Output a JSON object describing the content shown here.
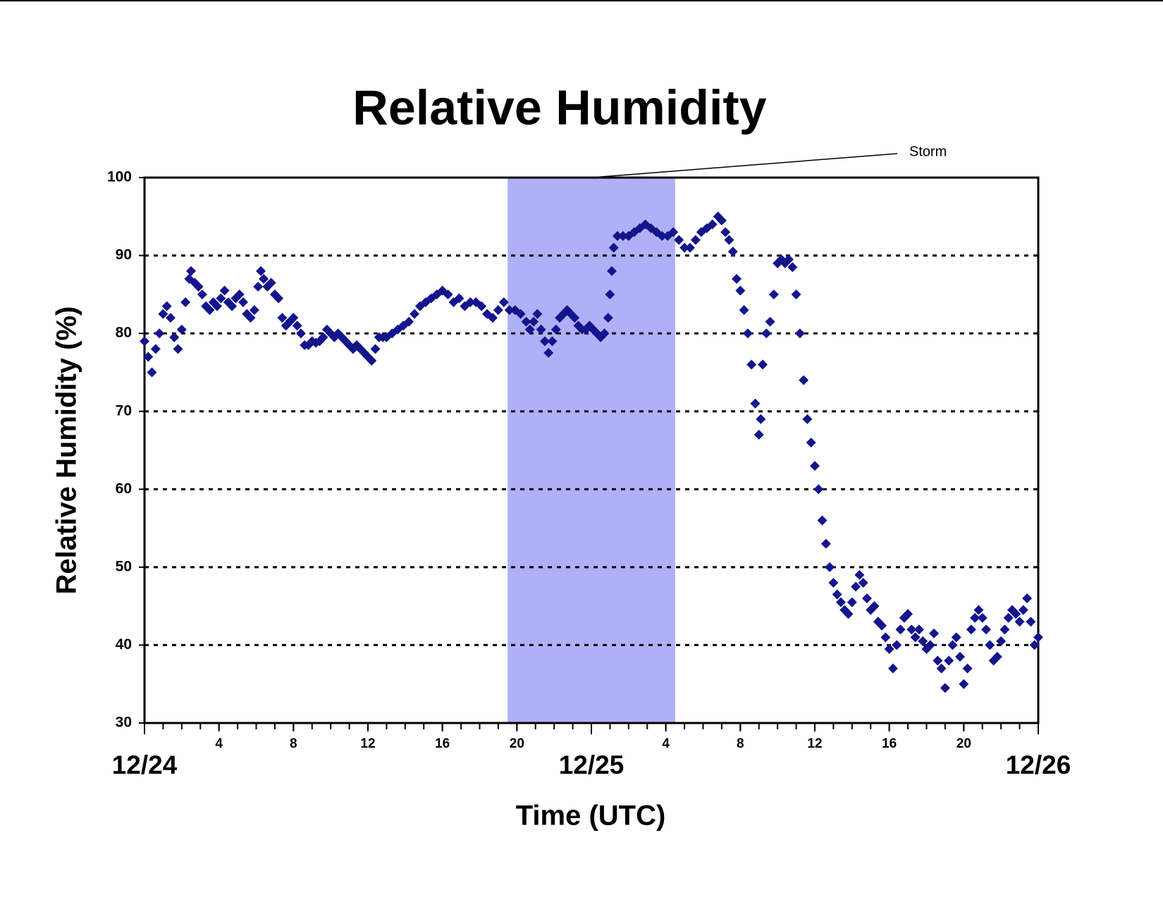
{
  "chart_data": {
    "type": "scatter",
    "title": "Relative Humidity",
    "xlabel": "Time (UTC)",
    "ylabel": "Relative Humidity (%)",
    "color": "#14148c",
    "grid": true,
    "xlim": [
      0,
      48
    ],
    "ylim": [
      30,
      100
    ],
    "yticks": [
      30,
      40,
      50,
      60,
      70,
      80,
      90,
      100
    ],
    "xticks": [
      4,
      8,
      12,
      16,
      20,
      {
        "value": 28,
        "label": "4"
      },
      {
        "value": 32,
        "label": "8"
      },
      {
        "value": 36,
        "label": "12"
      },
      {
        "value": 40,
        "label": "16"
      },
      {
        "value": 44,
        "label": "20"
      }
    ],
    "xdateticks": [
      {
        "value": 0,
        "label": "12/24"
      },
      {
        "value": 24,
        "label": "12/25"
      },
      {
        "value": 48,
        "label": "12/26"
      }
    ],
    "xminorticks": [
      0,
      1,
      2,
      3,
      4,
      5,
      6,
      7,
      8,
      9,
      10,
      11,
      12,
      13,
      14,
      15,
      16,
      17,
      18,
      19,
      20,
      21,
      22,
      23,
      24,
      25,
      26,
      27,
      28,
      29,
      30,
      31,
      32,
      33,
      34,
      35,
      36,
      37,
      38,
      39,
      40,
      41,
      42,
      43,
      44,
      45,
      46,
      47,
      48
    ],
    "shade": {
      "x": [
        19.5,
        28.5
      ],
      "label": "Storm",
      "color": "#b0b0f8"
    },
    "x": [
      0,
      0.2,
      0.4,
      0.6,
      0.8,
      1.0,
      1.2,
      1.4,
      1.6,
      1.8,
      2.0,
      2.2,
      2.4,
      2.5,
      2.7,
      2.9,
      3.1,
      3.3,
      3.5,
      3.7,
      3.9,
      4.1,
      4.3,
      4.5,
      4.7,
      4.9,
      5.1,
      5.3,
      5.5,
      5.7,
      5.9,
      6.1,
      6.25,
      6.4,
      6.6,
      6.8,
      7.0,
      7.2,
      7.4,
      7.6,
      7.8,
      8.0,
      8.2,
      8.4,
      8.6,
      8.8,
      9.0,
      9.2,
      9.4,
      9.6,
      9.8,
      10.0,
      10.2,
      10.4,
      10.6,
      10.8,
      11.0,
      11.2,
      11.4,
      11.6,
      11.8,
      12.0,
      12.2,
      12.4,
      12.6,
      12.8,
      13.0,
      13.3,
      13.6,
      13.9,
      14.2,
      14.5,
      14.8,
      15.1,
      15.4,
      15.7,
      16.0,
      16.3,
      16.6,
      16.9,
      17.2,
      17.5,
      17.8,
      18.1,
      18.4,
      18.7,
      19.0,
      19.3,
      19.6,
      19.9,
      20.2,
      20.5,
      20.7,
      20.9,
      21.1,
      21.3,
      21.5,
      21.7,
      21.9,
      22.1,
      22.3,
      22.5,
      22.7,
      22.9,
      23.1,
      23.3,
      23.5,
      23.7,
      23.9,
      24.1,
      24.3,
      24.5,
      24.7,
      24.9,
      25.0,
      25.1,
      25.2,
      25.4,
      25.7,
      26.0,
      26.3,
      26.6,
      26.9,
      27.2,
      27.5,
      27.8,
      28.1,
      28.4,
      28.7,
      29.0,
      29.3,
      29.6,
      29.9,
      30.2,
      30.5,
      30.8,
      31.0,
      31.2,
      31.4,
      31.6,
      31.8,
      32.0,
      32.2,
      32.4,
      32.6,
      32.8,
      33.0,
      33.1,
      33.2,
      33.4,
      33.6,
      33.8,
      34.0,
      34.2,
      34.4,
      34.6,
      34.8,
      35.0,
      35.2,
      35.4,
      35.6,
      35.8,
      36.0,
      36.2,
      36.4,
      36.6,
      36.8,
      37.0,
      37.2,
      37.4,
      37.6,
      37.8,
      38.0,
      38.2,
      38.4,
      38.6,
      38.8,
      39.0,
      39.2,
      39.4,
      39.6,
      39.8,
      40.0,
      40.2,
      40.4,
      40.6,
      40.8,
      41.0,
      41.2,
      41.4,
      41.6,
      41.8,
      42.0,
      42.2,
      42.4,
      42.6,
      42.8,
      43.0,
      43.2,
      43.4,
      43.6,
      43.8,
      44.0,
      44.2,
      44.4,
      44.6,
      44.8,
      45.0,
      45.2,
      45.4,
      45.6,
      45.8,
      46.0,
      46.2,
      46.4,
      46.6,
      46.8,
      47.0,
      47.2,
      47.4,
      47.6,
      47.8,
      48.0
    ],
    "values": [
      79,
      77,
      75,
      78,
      80,
      82.5,
      83.5,
      82,
      79.5,
      78,
      80.5,
      84,
      87,
      88,
      86.5,
      86,
      85,
      83.5,
      83,
      84,
      83.5,
      84.5,
      85.5,
      84,
      83.5,
      84.5,
      85,
      84,
      82.5,
      82,
      83,
      86,
      88,
      87,
      86,
      86.5,
      85,
      84.5,
      82,
      81,
      81.5,
      82,
      81,
      80,
      78.5,
      78.5,
      79,
      78.8,
      79,
      79.5,
      80.5,
      80,
      79.5,
      80,
      79.5,
      79,
      78.5,
      78,
      78.5,
      78,
      77.5,
      77,
      76.5,
      78,
      79.5,
      79.5,
      79.5,
      80,
      80.5,
      81,
      81.5,
      82.5,
      83.5,
      84,
      84.5,
      85,
      85.5,
      85,
      84,
      84.5,
      83.5,
      84,
      84,
      83.5,
      82.5,
      82,
      83,
      84,
      83,
      83,
      82.5,
      81.5,
      80.5,
      81.5,
      82.5,
      80.5,
      79,
      77.5,
      79,
      80.5,
      82,
      82.5,
      83,
      82.5,
      82,
      81,
      80.5,
      80.5,
      81,
      80.5,
      80,
      79.5,
      80,
      82,
      85,
      88,
      91,
      92.5,
      92.5,
      92.5,
      93,
      93.5,
      94,
      93.5,
      93,
      92.5,
      92.5,
      93,
      92,
      91,
      91,
      92,
      93,
      93.5,
      94,
      95,
      94.5,
      93,
      92,
      90.5,
      87,
      85.5,
      83,
      80,
      76,
      71,
      67,
      69,
      76,
      80,
      81.5,
      85,
      89,
      89.5,
      89,
      89.5,
      88.5,
      85,
      80,
      74,
      69,
      66,
      63,
      60,
      56,
      53,
      50,
      48,
      46.5,
      45.5,
      44.5,
      44,
      45.5,
      47.5,
      49,
      48,
      46,
      44.5,
      45,
      43,
      42.5,
      41,
      39.5,
      37,
      40,
      42,
      43.5,
      44,
      42,
      41,
      42,
      40.5,
      39.5,
      40,
      41.5,
      38,
      37,
      34.5,
      38,
      40,
      41,
      38.5,
      35,
      37,
      42,
      43.5,
      44.5,
      43.5,
      42,
      40,
      38,
      38.5,
      40.5,
      42,
      43.5,
      44.5,
      44,
      43,
      44.5,
      46,
      43,
      40,
      41
    ]
  }
}
